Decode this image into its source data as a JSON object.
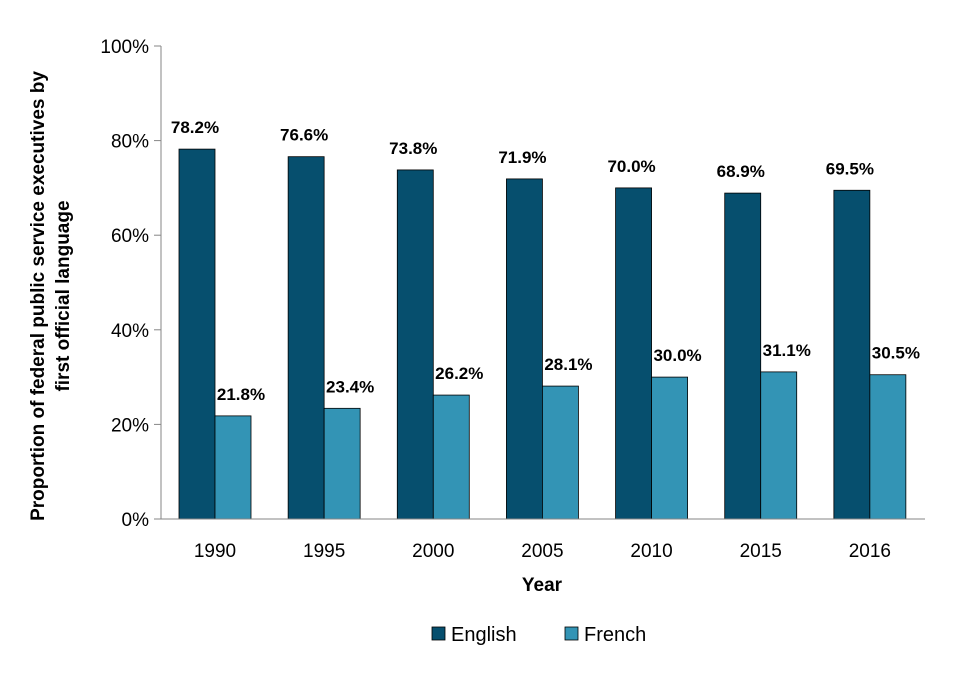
{
  "chart_data": {
    "type": "bar",
    "title": "",
    "xlabel": "Year",
    "ylabel": "Proportion of federal public service executives by first official language",
    "ylabel_lines": [
      "Proportion of federal public service executives by",
      "first official language"
    ],
    "categories": [
      "1990",
      "1995",
      "2000",
      "2005",
      "2010",
      "2015",
      "2016"
    ],
    "series": [
      {
        "name": "English",
        "color": "#064f6e",
        "values": [
          78.2,
          76.6,
          73.8,
          71.9,
          70.0,
          68.9,
          69.5
        ],
        "labels": [
          "78.2%",
          "76.6%",
          "73.8%",
          "71.9%",
          "70.0%",
          "68.9%",
          "69.5%"
        ]
      },
      {
        "name": "French",
        "color": "#3394b5",
        "values": [
          21.8,
          23.4,
          26.2,
          28.1,
          30.0,
          31.1,
          30.5
        ],
        "labels": [
          "21.8%",
          "23.4%",
          "26.2%",
          "28.1%",
          "30.0%",
          "31.1%",
          "30.5%"
        ]
      }
    ],
    "ylim": [
      0,
      100
    ],
    "yticks": [
      0,
      20,
      40,
      60,
      80,
      100
    ],
    "ytick_labels": [
      "0%",
      "20%",
      "40%",
      "60%",
      "80%",
      "100%"
    ],
    "grid": false,
    "legend_position": "bottom"
  }
}
